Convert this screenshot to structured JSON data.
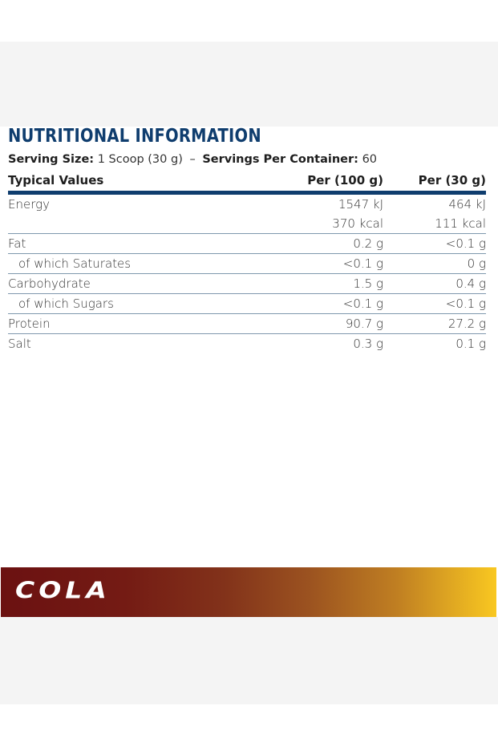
{
  "nutrition": {
    "title": "NUTRITIONAL INFORMATION",
    "serving": {
      "size_label": "Serving Size:",
      "size_value": "1 Scoop (30 g)",
      "separator": "–",
      "servings_label": "Servings Per Container:",
      "servings_value": "60"
    },
    "table": {
      "headers": [
        "Typical Values",
        "Per (100 g)",
        "Per (30 g)"
      ],
      "rows": [
        {
          "label": "Energy",
          "per100": "1547 kJ",
          "per30": "464 kJ"
        },
        {
          "label": "",
          "per100": "370 kcal",
          "per30": "111 kcal"
        },
        {
          "label": "Fat",
          "per100": "0.2 g",
          "per30": "<0.1 g"
        },
        {
          "label": "of which Saturates",
          "per100": "<0.1 g",
          "per30": "0 g"
        },
        {
          "label": "Carbohydrate",
          "per100": "1.5 g",
          "per30": "0.4 g"
        },
        {
          "label": "of which Sugars",
          "per100": "<0.1 g",
          "per30": "<0.1 g"
        },
        {
          "label": "Protein",
          "per100": "90.7 g",
          "per30": "27.2 g"
        },
        {
          "label": "Salt",
          "per100": "0.3 g",
          "per30": "0.1 g"
        }
      ]
    }
  },
  "flavor_banner": {
    "label": "COLA",
    "gradient_start": "#6b1111",
    "gradient_end": "#f9c821"
  },
  "colors": {
    "title_blue": "#0f3d6e",
    "rule_blue": "#0f3d6e",
    "row_divider": "#7f98ad",
    "panel_gray": "#f4f4f4"
  }
}
